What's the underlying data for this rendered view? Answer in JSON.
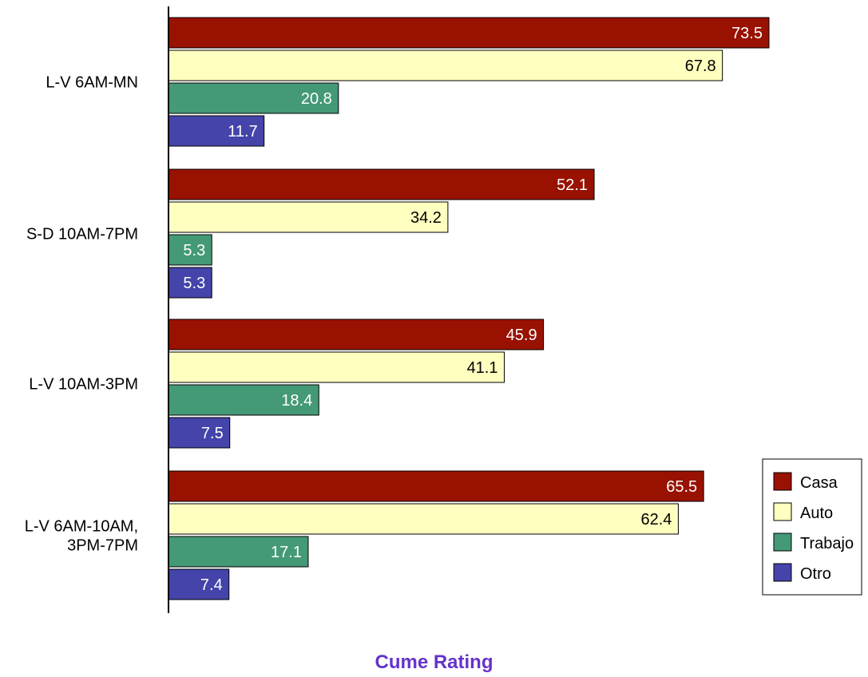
{
  "chart_data": {
    "type": "bar",
    "orientation": "horizontal",
    "title": "",
    "xlabel": "Cume Rating",
    "ylabel": "",
    "categories": [
      "L-V 6AM-MN",
      "S-D 10AM-7PM",
      "L-V 10AM-3PM",
      "L-V 6AM-10AM,\n3PM-7PM"
    ],
    "series": [
      {
        "name": "Casa",
        "color": "#991100",
        "label_color": "#ffffff",
        "values": [
          73.5,
          52.1,
          45.9,
          65.5
        ]
      },
      {
        "name": "Auto",
        "color": "#ffffc0",
        "label_color": "#000000",
        "values": [
          67.8,
          34.2,
          41.1,
          62.4
        ]
      },
      {
        "name": "Trabajo",
        "color": "#449977",
        "label_color": "#ffffff",
        "values": [
          20.8,
          5.3,
          18.4,
          17.1
        ]
      },
      {
        "name": "Otro",
        "color": "#4444aa",
        "label_color": "#ffffff",
        "values": [
          11.7,
          5.3,
          7.5,
          7.4
        ]
      }
    ],
    "xlim": [
      0,
      80
    ],
    "grid": false,
    "legend_position": "bottom-right",
    "data_labels": true
  }
}
